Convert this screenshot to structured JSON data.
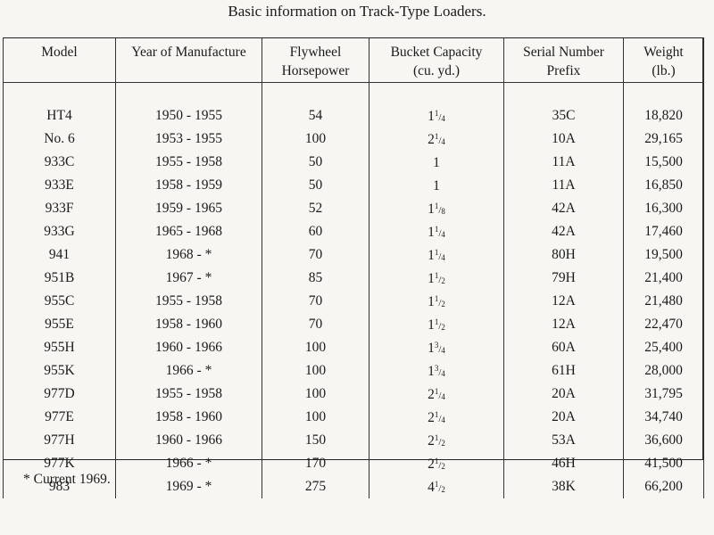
{
  "title": "Basic information on Track-Type Loaders.",
  "headers": [
    {
      "line1": "Model",
      "line2": ""
    },
    {
      "line1": "Year of Manufacture",
      "line2": ""
    },
    {
      "line1": "Flywheel",
      "line2": "Horsepower"
    },
    {
      "line1": "Bucket Capacity",
      "line2": "(cu. yd.)"
    },
    {
      "line1": "Serial Number",
      "line2": "Prefix"
    },
    {
      "line1": "Weight",
      "line2": "(lb.)"
    }
  ],
  "rows": [
    {
      "model": "HT4",
      "years": "1950 - 1955",
      "hp": "54",
      "bucket": {
        "whole": "1",
        "num": "1",
        "den": "4"
      },
      "serial": "35C",
      "weight": "18,820"
    },
    {
      "model": "No. 6",
      "years": "1953 - 1955",
      "hp": "100",
      "bucket": {
        "whole": "2",
        "num": "1",
        "den": "4"
      },
      "serial": "10A",
      "weight": "29,165"
    },
    {
      "model": "933C",
      "years": "1955 - 1958",
      "hp": "50",
      "bucket": {
        "whole": "1",
        "num": "",
        "den": ""
      },
      "serial": "11A",
      "weight": "15,500"
    },
    {
      "model": "933E",
      "years": "1958 - 1959",
      "hp": "50",
      "bucket": {
        "whole": "1",
        "num": "",
        "den": ""
      },
      "serial": "11A",
      "weight": "16,850"
    },
    {
      "model": "933F",
      "years": "1959 - 1965",
      "hp": "52",
      "bucket": {
        "whole": "1",
        "num": "1",
        "den": "8"
      },
      "serial": "42A",
      "weight": "16,300"
    },
    {
      "model": "933G",
      "years": "1965 - 1968",
      "hp": "60",
      "bucket": {
        "whole": "1",
        "num": "1",
        "den": "4"
      },
      "serial": "42A",
      "weight": "17,460"
    },
    {
      "model": "941",
      "years": "1968 - *",
      "hp": "70",
      "bucket": {
        "whole": "1",
        "num": "1",
        "den": "4"
      },
      "serial": "80H",
      "weight": "19,500"
    },
    {
      "model": "951B",
      "years": "1967 - *",
      "hp": "85",
      "bucket": {
        "whole": "1",
        "num": "1",
        "den": "2"
      },
      "serial": "79H",
      "weight": "21,400"
    },
    {
      "model": "955C",
      "years": "1955 - 1958",
      "hp": "70",
      "bucket": {
        "whole": "1",
        "num": "1",
        "den": "2"
      },
      "serial": "12A",
      "weight": "21,480"
    },
    {
      "model": "955E",
      "years": "1958 - 1960",
      "hp": "70",
      "bucket": {
        "whole": "1",
        "num": "1",
        "den": "2"
      },
      "serial": "12A",
      "weight": "22,470"
    },
    {
      "model": "955H",
      "years": "1960 - 1966",
      "hp": "100",
      "bucket": {
        "whole": "1",
        "num": "3",
        "den": "4"
      },
      "serial": "60A",
      "weight": "25,400"
    },
    {
      "model": "955K",
      "years": "1966 - *",
      "hp": "100",
      "bucket": {
        "whole": "1",
        "num": "3",
        "den": "4"
      },
      "serial": "61H",
      "weight": "28,000"
    },
    {
      "model": "977D",
      "years": "1955 - 1958",
      "hp": "100",
      "bucket": {
        "whole": "2",
        "num": "1",
        "den": "4"
      },
      "serial": "20A",
      "weight": "31,795"
    },
    {
      "model": "977E",
      "years": "1958 - 1960",
      "hp": "100",
      "bucket": {
        "whole": "2",
        "num": "1",
        "den": "4"
      },
      "serial": "20A",
      "weight": "34,740"
    },
    {
      "model": "977H",
      "years": "1960 - 1966",
      "hp": "150",
      "bucket": {
        "whole": "2",
        "num": "1",
        "den": "2"
      },
      "serial": "53A",
      "weight": "36,600"
    },
    {
      "model": "977K",
      "years": "1966 - *",
      "hp": "170",
      "bucket": {
        "whole": "2",
        "num": "1",
        "den": "2"
      },
      "serial": "46H",
      "weight": "41,500"
    },
    {
      "model": "983",
      "years": "1969 - *",
      "hp": "275",
      "bucket": {
        "whole": "4",
        "num": "1",
        "den": "2"
      },
      "serial": "38K",
      "weight": "66,200"
    }
  ],
  "footnote": "* Current 1969."
}
